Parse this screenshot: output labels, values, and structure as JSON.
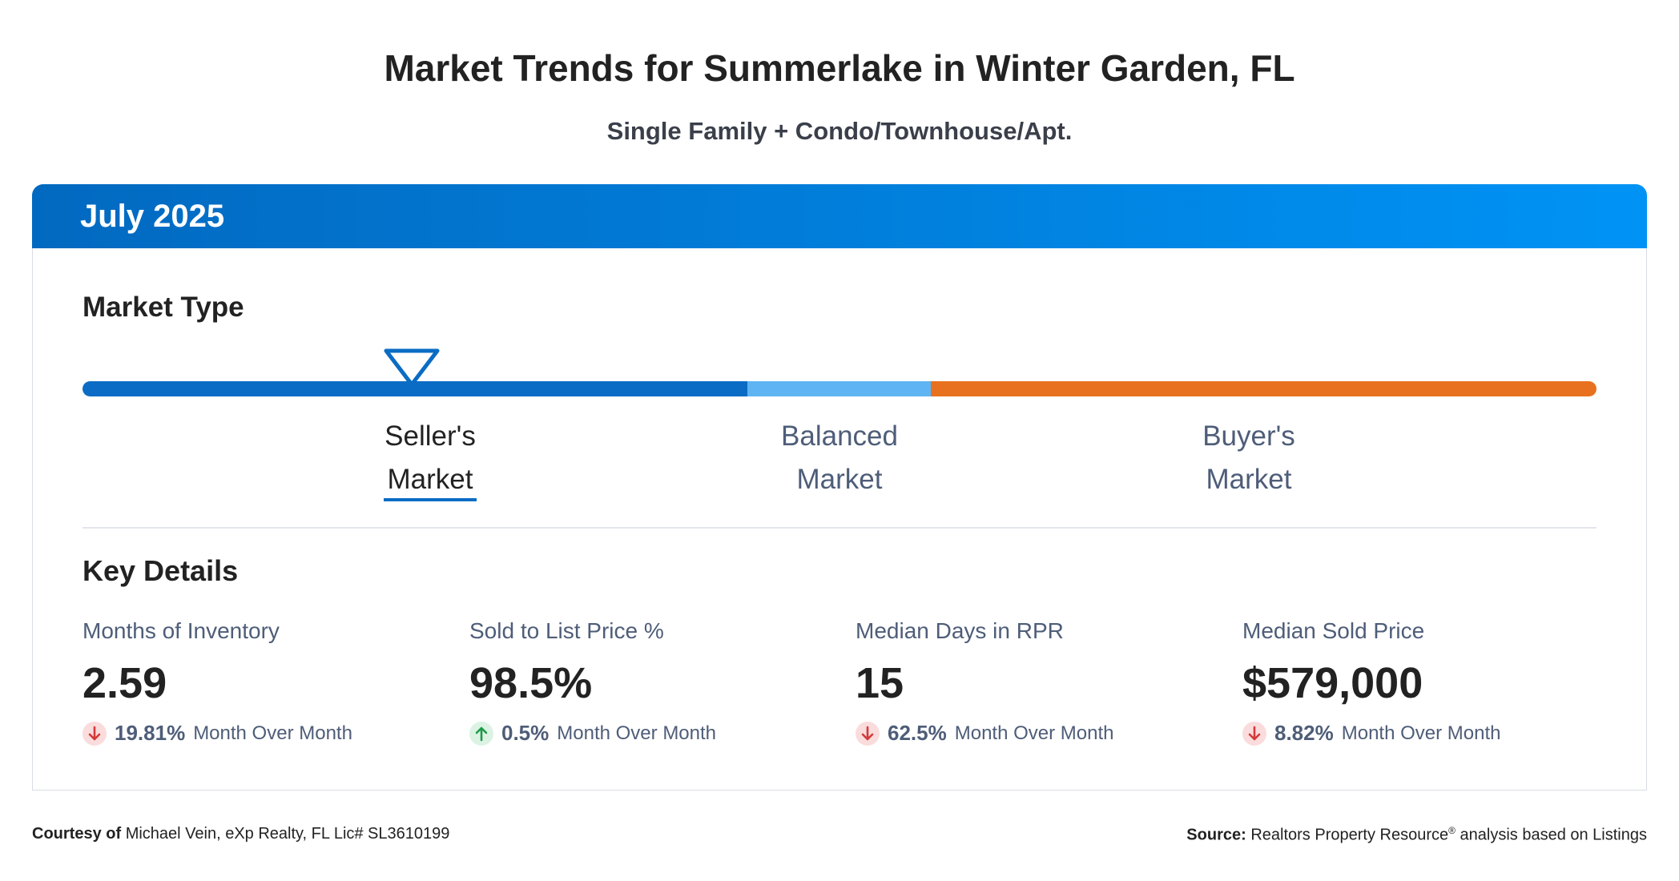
{
  "header": {
    "title": "Market Trends for Summerlake in Winter Garden, FL",
    "subtitle": "Single Family + Condo/Townhouse/Apt."
  },
  "period": "July 2025",
  "market_type": {
    "heading": "Market Type",
    "options": [
      {
        "line1": "Seller's",
        "line2": "Market",
        "selected": true
      },
      {
        "line1": "Balanced",
        "line2": "Market",
        "selected": false
      },
      {
        "line1": "Buyer's",
        "line2": "Market",
        "selected": false
      }
    ]
  },
  "key_details": {
    "heading": "Key Details",
    "metrics": [
      {
        "label": "Months of Inventory",
        "value": "2.59",
        "change": "19.81%",
        "direction": "down",
        "change_label": "Month Over Month"
      },
      {
        "label": "Sold to List Price %",
        "value": "98.5%",
        "change": "0.5%",
        "direction": "up",
        "change_label": "Month Over Month"
      },
      {
        "label": "Median Days in RPR",
        "value": "15",
        "change": "62.5%",
        "direction": "down",
        "change_label": "Month Over Month"
      },
      {
        "label": "Median Sold Price",
        "value": "$579,000",
        "change": "8.82%",
        "direction": "down",
        "change_label": "Month Over Month"
      }
    ]
  },
  "footer": {
    "courtesy_label": "Courtesy of",
    "courtesy": "Michael Vein, eXp Realty, FL Lic# SL3610199",
    "source_label": "Source:",
    "source_name": "Realtors Property Resource",
    "source_mark": "®",
    "source_rest": " analysis based on Listings"
  }
}
